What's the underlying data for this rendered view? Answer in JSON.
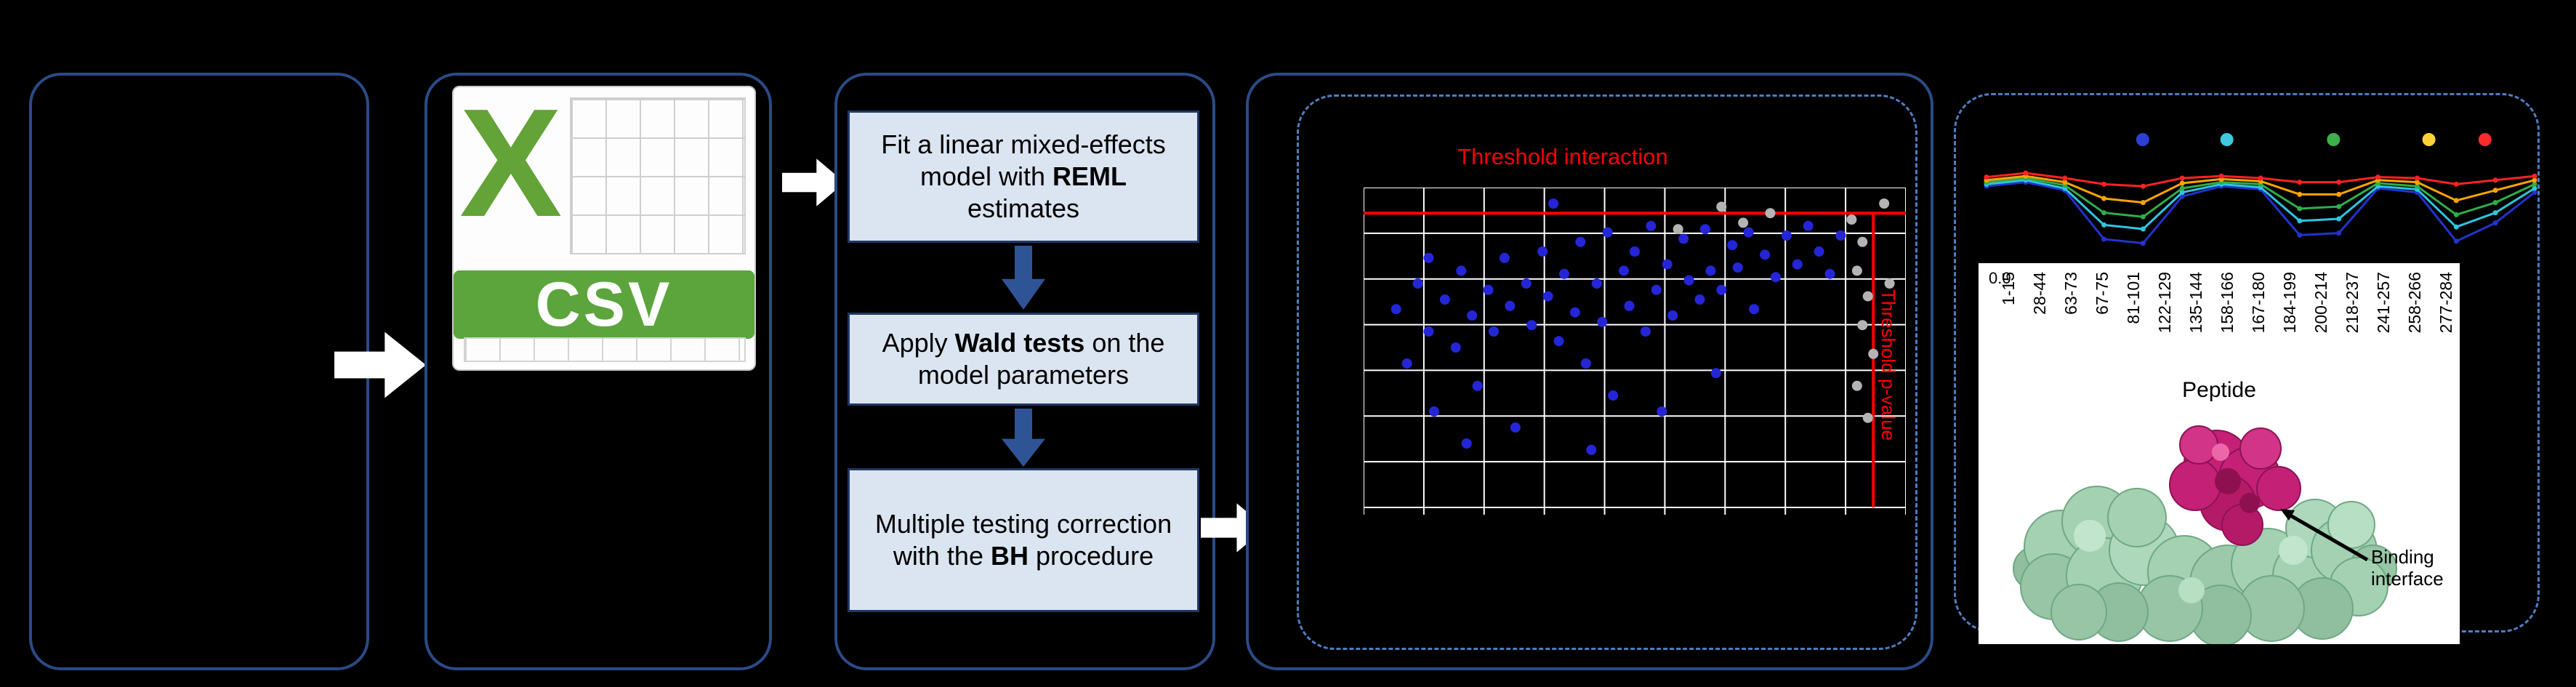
{
  "colors": {
    "background": "#000000",
    "box_border": "#2b4a86",
    "dashed_border": "#4f7dc0",
    "flow_fill": "#dbe5f1",
    "flow_border": "#1f3864",
    "arrow_blue": "#2f5496",
    "arrow_white": "#ffffff",
    "threshold_red": "#ff0000",
    "csv_green": "#5ba53c",
    "protein_green": "#a3d1b2",
    "protein_magenta": "#c42076"
  },
  "csv": {
    "x_letter": "X",
    "label": "CSV"
  },
  "flow": {
    "steps": [
      {
        "pre": "Fit a linear mixed-effects model with ",
        "bold": "REML",
        "post": " estimates"
      },
      {
        "pre": "Apply ",
        "bold": "Wald tests",
        "post": " on the model parameters"
      },
      {
        "pre": "Multiple testing correction with the ",
        "bold": "BH",
        "post": " procedure"
      }
    ]
  },
  "peptide_panel": {
    "annotation": "Binding interface"
  },
  "chart_data": [
    {
      "type": "scatter",
      "title": "Threshold interaction",
      "vertical_label": "Threshold p-value",
      "xlim": [
        0,
        1
      ],
      "ylim": [
        0,
        1
      ],
      "grid": {
        "v_lines": 9,
        "h_lines": 7,
        "color": "#ffffff"
      },
      "thresholds": {
        "horizontal_y": 0.92,
        "vertical_x": 0.94,
        "color": "#ff0000"
      },
      "series": [
        {
          "name": "peptides-significant",
          "color": "#2525d8",
          "points": [
            [
              0.06,
              0.62
            ],
            [
              0.08,
              0.45
            ],
            [
              0.1,
              0.7
            ],
            [
              0.12,
              0.55
            ],
            [
              0.13,
              0.3
            ],
            [
              0.15,
              0.65
            ],
            [
              0.17,
              0.5
            ],
            [
              0.18,
              0.74
            ],
            [
              0.2,
              0.6
            ],
            [
              0.21,
              0.38
            ],
            [
              0.23,
              0.68
            ],
            [
              0.24,
              0.55
            ],
            [
              0.26,
              0.78
            ],
            [
              0.27,
              0.63
            ],
            [
              0.28,
              0.25
            ],
            [
              0.3,
              0.7
            ],
            [
              0.31,
              0.57
            ],
            [
              0.33,
              0.8
            ],
            [
              0.34,
              0.66
            ],
            [
              0.35,
              0.95
            ],
            [
              0.36,
              0.52
            ],
            [
              0.37,
              0.73
            ],
            [
              0.39,
              0.61
            ],
            [
              0.4,
              0.83
            ],
            [
              0.41,
              0.45
            ],
            [
              0.43,
              0.7
            ],
            [
              0.44,
              0.58
            ],
            [
              0.45,
              0.86
            ],
            [
              0.46,
              0.35
            ],
            [
              0.48,
              0.74
            ],
            [
              0.49,
              0.63
            ],
            [
              0.5,
              0.8
            ],
            [
              0.52,
              0.55
            ],
            [
              0.53,
              0.88
            ],
            [
              0.54,
              0.68
            ],
            [
              0.56,
              0.76
            ],
            [
              0.57,
              0.6
            ],
            [
              0.59,
              0.84
            ],
            [
              0.6,
              0.71
            ],
            [
              0.62,
              0.65
            ],
            [
              0.63,
              0.87
            ],
            [
              0.64,
              0.74
            ],
            [
              0.66,
              0.68
            ],
            [
              0.68,
              0.82
            ],
            [
              0.69,
              0.75
            ],
            [
              0.71,
              0.86
            ],
            [
              0.72,
              0.62
            ],
            [
              0.74,
              0.79
            ],
            [
              0.76,
              0.72
            ],
            [
              0.78,
              0.85
            ],
            [
              0.8,
              0.76
            ],
            [
              0.82,
              0.88
            ],
            [
              0.84,
              0.8
            ],
            [
              0.86,
              0.73
            ],
            [
              0.88,
              0.85
            ],
            [
              0.19,
              0.2
            ],
            [
              0.42,
              0.18
            ],
            [
              0.55,
              0.3
            ],
            [
              0.65,
              0.42
            ],
            [
              0.12,
              0.78
            ]
          ]
        },
        {
          "name": "peptides-nonsignificant",
          "color": "#b4b4b4",
          "points": [
            [
              0.58,
              0.87
            ],
            [
              0.66,
              0.94
            ],
            [
              0.7,
              0.89
            ],
            [
              0.75,
              0.92
            ],
            [
              0.9,
              0.9
            ],
            [
              0.92,
              0.83
            ],
            [
              0.91,
              0.74
            ],
            [
              0.93,
              0.66
            ],
            [
              0.92,
              0.57
            ],
            [
              0.94,
              0.48
            ],
            [
              0.91,
              0.38
            ],
            [
              0.93,
              0.28
            ],
            [
              0.96,
              0.95
            ],
            [
              0.97,
              0.7
            ]
          ]
        }
      ]
    },
    {
      "type": "line",
      "categories": [
        "1-15",
        "28-44",
        "63-73",
        "67-75",
        "81-101",
        "122-129",
        "135-144",
        "158-166",
        "167-180",
        "184-199",
        "200-214",
        "218-237",
        "241-257",
        "258-266",
        "277-284"
      ],
      "xlabel": "Peptide",
      "y_tick_label": "0.0",
      "legend_dots": [
        "#2b3fd6",
        "#41c8e0",
        "#3faf4c",
        "#ffd23a",
        "#ff2a2a"
      ],
      "legend_x": [
        0.29,
        0.44,
        0.63,
        0.8,
        0.9
      ],
      "series": [
        {
          "name": "series-blue",
          "color": "#2233cc",
          "values": [
            0.82,
            0.86,
            0.78,
            0.3,
            0.26,
            0.72,
            0.82,
            0.79,
            0.34,
            0.36,
            0.8,
            0.76,
            0.28,
            0.46,
            0.76
          ]
        },
        {
          "name": "series-cyan",
          "color": "#2fc4e0",
          "values": [
            0.84,
            0.88,
            0.8,
            0.44,
            0.4,
            0.76,
            0.84,
            0.81,
            0.48,
            0.5,
            0.82,
            0.79,
            0.42,
            0.56,
            0.8
          ]
        },
        {
          "name": "series-green",
          "color": "#2fae4a",
          "values": [
            0.86,
            0.9,
            0.83,
            0.56,
            0.52,
            0.8,
            0.86,
            0.84,
            0.6,
            0.62,
            0.85,
            0.82,
            0.54,
            0.66,
            0.84
          ]
        },
        {
          "name": "series-orange",
          "color": "#ffa400",
          "values": [
            0.88,
            0.92,
            0.86,
            0.7,
            0.66,
            0.85,
            0.89,
            0.87,
            0.74,
            0.74,
            0.88,
            0.86,
            0.68,
            0.78,
            0.88
          ]
        },
        {
          "name": "series-red",
          "color": "#ff2222",
          "values": [
            0.91,
            0.95,
            0.9,
            0.84,
            0.82,
            0.9,
            0.92,
            0.9,
            0.86,
            0.86,
            0.91,
            0.9,
            0.84,
            0.88,
            0.92
          ]
        }
      ]
    }
  ]
}
